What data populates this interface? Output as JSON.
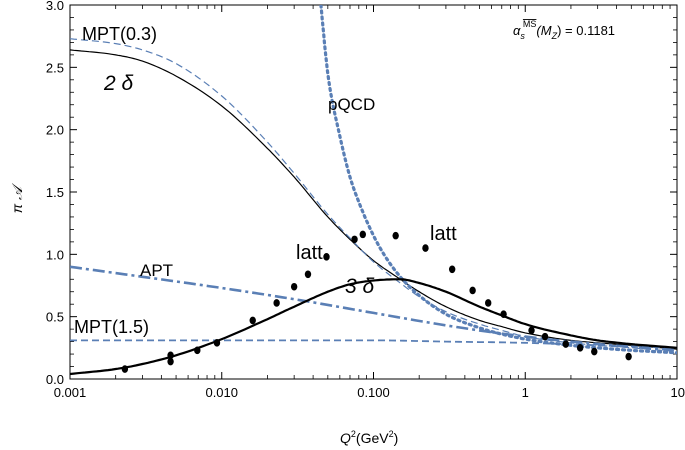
{
  "chart_data": {
    "type": "line",
    "xscale": "log",
    "xlim": [
      0.001,
      10
    ],
    "ylim": [
      0,
      3.0
    ],
    "xlabel": {
      "main": "Q",
      "sup": "2",
      "unit": "(GeV",
      "unit_sup": "2",
      "close": ")"
    },
    "ylabel": "π 𝒜",
    "xticks": [
      {
        "value": 0.001,
        "label": "0.001"
      },
      {
        "value": 0.01,
        "label": "0.010"
      },
      {
        "value": 0.1,
        "label": "0.100"
      },
      {
        "value": 1,
        "label": "1"
      },
      {
        "value": 10,
        "label": "10"
      }
    ],
    "yticks": [
      {
        "value": 0.0,
        "label": "0.0"
      },
      {
        "value": 0.5,
        "label": "0.5"
      },
      {
        "value": 1.0,
        "label": "1.0"
      },
      {
        "value": 1.5,
        "label": "1.5"
      },
      {
        "value": 2.0,
        "label": "2.0"
      },
      {
        "value": 2.5,
        "label": "2.5"
      },
      {
        "value": 3.0,
        "label": "3.0"
      }
    ],
    "alpha_label": {
      "alpha": "α",
      "sub": "s",
      "sup": "MS",
      "arg": "(M",
      "arg_sub": "Z",
      "rest": ") = 0.1181"
    },
    "series": [
      {
        "name": "2 δ",
        "color": "#000000",
        "style": "solid",
        "width": 1.2,
        "x": [
          0.001,
          0.002,
          0.003,
          0.005,
          0.01,
          0.02,
          0.03,
          0.05,
          0.07,
          0.1,
          0.15,
          0.2,
          0.3,
          0.5,
          0.7,
          1,
          2,
          3,
          5,
          10
        ],
        "y": [
          2.64,
          2.6,
          2.55,
          2.43,
          2.19,
          1.85,
          1.62,
          1.3,
          1.12,
          0.95,
          0.8,
          0.7,
          0.58,
          0.47,
          0.42,
          0.37,
          0.31,
          0.29,
          0.27,
          0.24
        ]
      },
      {
        "name": "MPT(0.3)",
        "color": "#5a7fb5",
        "style": "dashed",
        "width": 1.2,
        "x": [
          0.001,
          0.002,
          0.003,
          0.005,
          0.01,
          0.02,
          0.03,
          0.05,
          0.07,
          0.1,
          0.15,
          0.2,
          0.3,
          0.5,
          0.7,
          1,
          2,
          3,
          5,
          10
        ],
        "y": [
          2.73,
          2.69,
          2.64,
          2.53,
          2.27,
          1.9,
          1.65,
          1.32,
          1.13,
          0.94,
          0.77,
          0.66,
          0.54,
          0.44,
          0.39,
          0.34,
          0.29,
          0.27,
          0.25,
          0.22
        ]
      },
      {
        "name": "pQCD",
        "color": "#5a7fb5",
        "style": "dotted",
        "width": 3.2,
        "x": [
          0.045,
          0.05,
          0.06,
          0.07,
          0.08,
          0.1,
          0.12,
          0.15,
          0.2,
          0.3,
          0.5,
          0.7,
          1,
          2,
          3,
          5,
          10
        ],
        "y": [
          3.0,
          2.45,
          1.95,
          1.62,
          1.42,
          1.15,
          0.98,
          0.82,
          0.67,
          0.52,
          0.41,
          0.36,
          0.32,
          0.27,
          0.25,
          0.23,
          0.21
        ]
      },
      {
        "name": "APT",
        "color": "#5a7fb5",
        "style": "dashdot",
        "width": 2.6,
        "x": [
          0.001,
          0.003,
          0.01,
          0.03,
          0.1,
          0.3,
          1,
          3,
          10
        ],
        "y": [
          0.9,
          0.82,
          0.73,
          0.64,
          0.53,
          0.43,
          0.34,
          0.28,
          0.23
        ]
      },
      {
        "name": "MPT(1.5)",
        "color": "#5a7fb5",
        "style": "dashed",
        "width": 1.8,
        "x": [
          0.001,
          0.01,
          0.1,
          0.3,
          1,
          3,
          10
        ],
        "y": [
          0.31,
          0.31,
          0.31,
          0.3,
          0.29,
          0.27,
          0.25
        ]
      },
      {
        "name": "3 δ",
        "color": "#000000",
        "style": "solid",
        "width": 2.2,
        "x": [
          0.001,
          0.002,
          0.003,
          0.005,
          0.01,
          0.02,
          0.03,
          0.05,
          0.07,
          0.1,
          0.15,
          0.2,
          0.3,
          0.5,
          0.7,
          1,
          2,
          3,
          5,
          10
        ],
        "y": [
          0.04,
          0.08,
          0.12,
          0.19,
          0.32,
          0.48,
          0.58,
          0.7,
          0.76,
          0.79,
          0.8,
          0.77,
          0.7,
          0.58,
          0.51,
          0.44,
          0.35,
          0.31,
          0.28,
          0.25
        ]
      }
    ],
    "latt_points": {
      "x": [
        0.0023,
        0.0046,
        0.0046,
        0.0069,
        0.0093,
        0.016,
        0.023,
        0.03,
        0.037,
        0.049,
        0.075,
        0.085,
        0.14,
        0.22,
        0.33,
        0.45,
        0.57,
        0.72,
        1.1,
        1.35,
        1.85,
        2.3,
        2.85,
        4.8
      ],
      "y": [
        0.08,
        0.14,
        0.19,
        0.23,
        0.29,
        0.47,
        0.61,
        0.74,
        0.84,
        0.98,
        1.12,
        1.16,
        1.15,
        1.05,
        0.88,
        0.71,
        0.61,
        0.52,
        0.39,
        0.34,
        0.28,
        0.25,
        0.22,
        0.18
      ]
    },
    "annotations": {
      "mpt03": "MPT(0.3)",
      "two_delta": "2 δ",
      "pqcd": "pQCD",
      "latt1": "latt",
      "latt2": "latt",
      "apt": "APT",
      "three_delta": "3 δ",
      "mpt15": "MPT(1.5)"
    }
  }
}
